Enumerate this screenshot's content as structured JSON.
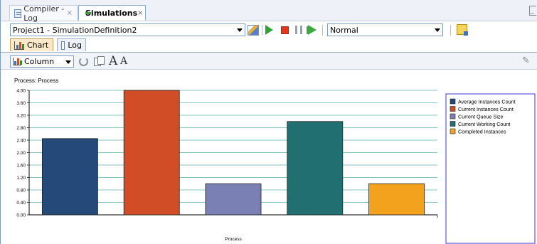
{
  "tabs": [
    {
      "label": "Compiler - Log",
      "close": "×"
    },
    {
      "label": "Simulations",
      "close": "×"
    }
  ],
  "definition_select": {
    "value": "Project1 - SimulationDefinition2"
  },
  "mode_select": {
    "value": "Normal"
  },
  "subtabs": [
    {
      "label": "Chart"
    },
    {
      "label": "Log"
    }
  ],
  "chart_type_select": {
    "value": "Column"
  },
  "font_buttons": {
    "increase": "A",
    "decrease": "A"
  },
  "colors": {
    "average": "#254a7a",
    "current_instances": "#d14d26",
    "queue": "#7a7fb4",
    "working": "#216f70",
    "completed": "#f2a21c",
    "gridline": "#5fb3b3",
    "legend_border": "#3a3ad0"
  },
  "chart_data": {
    "type": "bar",
    "title": "Process: Process",
    "xlabel": "Process",
    "ylabel": "",
    "ylim": [
      0,
      4.0
    ],
    "yticks": [
      "0.00",
      "0.40",
      "0.80",
      "1.20",
      "1.60",
      "2.00",
      "2.40",
      "2.80",
      "3.20",
      "3.60",
      "4.00"
    ],
    "categories": [
      "Process"
    ],
    "series": [
      {
        "name": "Average Instances Count",
        "values": [
          2.45
        ],
        "color": "#254a7a"
      },
      {
        "name": "Current Instances Count",
        "values": [
          4.0
        ],
        "color": "#d14d26"
      },
      {
        "name": "Current Queue Size",
        "values": [
          1.0
        ],
        "color": "#7a7fb4"
      },
      {
        "name": "Current Working Count",
        "values": [
          3.0
        ],
        "color": "#216f70"
      },
      {
        "name": "Completed Instances",
        "values": [
          1.0
        ],
        "color": "#f2a21c"
      }
    ],
    "grid": true,
    "legend_position": "right"
  }
}
